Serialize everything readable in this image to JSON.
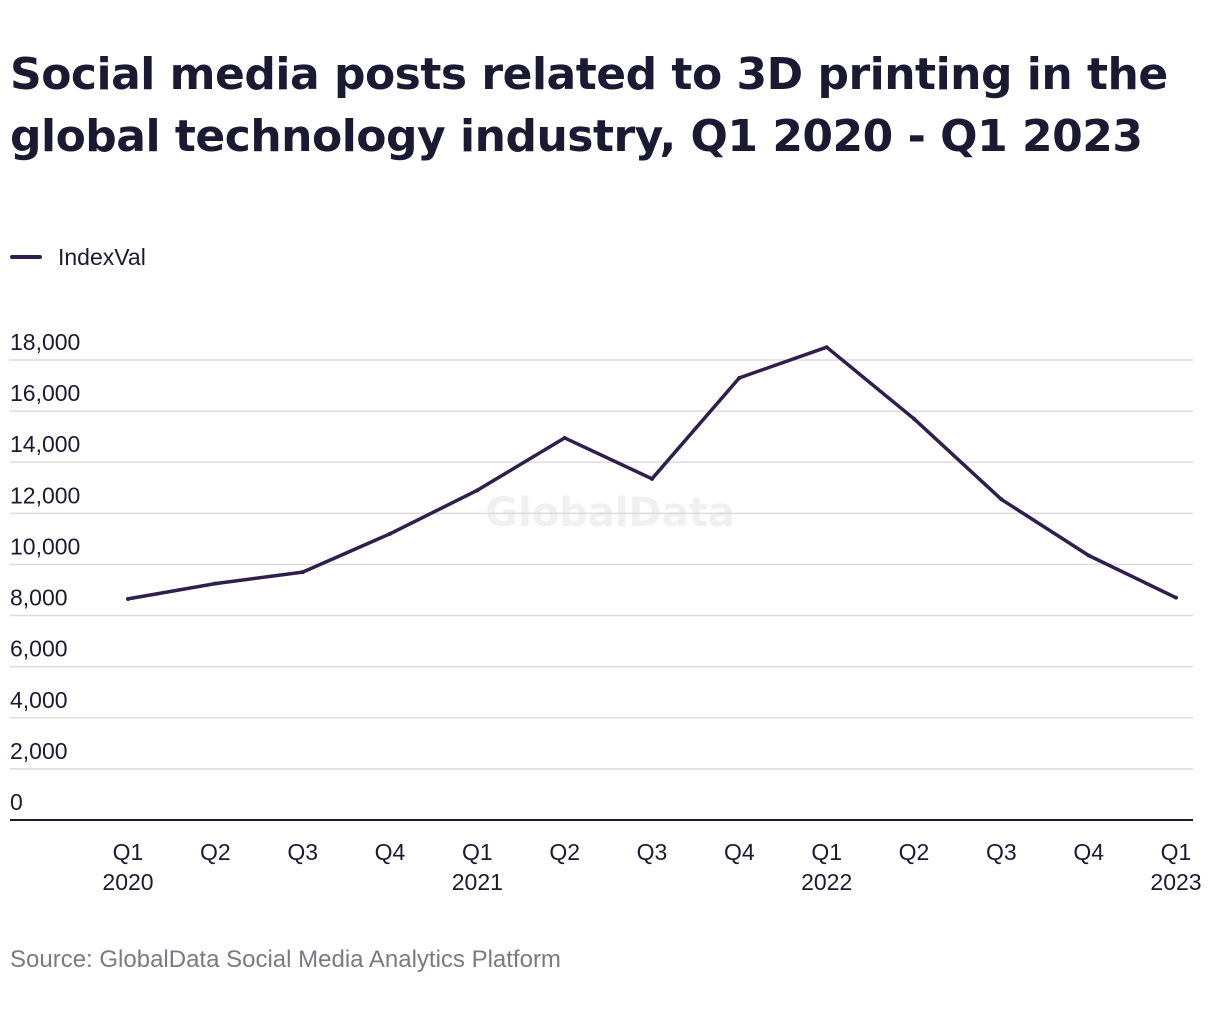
{
  "title": "Social media posts related to 3D printing in the global technology industry, Q1 2020 - Q1 2023",
  "source": "Source: GlobalData Social Media Analytics Platform",
  "watermark": "GlobalData",
  "colors": {
    "line": "#2e1f4f",
    "grid": "#dcdcdc",
    "axis": "#1c1a33"
  },
  "chart_data": {
    "type": "line",
    "title": "Social media posts related to 3D printing in the global technology industry, Q1 2020 - Q1 2023",
    "xlabel": "",
    "ylabel": "",
    "categories": [
      "Q1 2020",
      "Q2 2020",
      "Q3 2020",
      "Q4 2020",
      "Q1 2021",
      "Q2 2021",
      "Q3 2021",
      "Q4 2021",
      "Q1 2022",
      "Q2 2022",
      "Q3 2022",
      "Q4 2022",
      "Q1 2023"
    ],
    "tick_labels": [
      [
        "Q1",
        "2020"
      ],
      [
        "Q2"
      ],
      [
        "Q3"
      ],
      [
        "Q4"
      ],
      [
        "Q1",
        "2021"
      ],
      [
        "Q2"
      ],
      [
        "Q3"
      ],
      [
        "Q4"
      ],
      [
        "Q1",
        "2022"
      ],
      [
        "Q2"
      ],
      [
        "Q3"
      ],
      [
        "Q4"
      ],
      [
        "Q1",
        "2023"
      ]
    ],
    "series": [
      {
        "name": "IndexVal",
        "values": [
          8650,
          9250,
          9700,
          11200,
          12900,
          14950,
          13350,
          17300,
          18500,
          15700,
          12550,
          10350,
          8700
        ]
      }
    ],
    "ylim": [
      0,
      18000
    ],
    "yticks": [
      0,
      2000,
      4000,
      6000,
      8000,
      10000,
      12000,
      14000,
      16000,
      18000
    ],
    "ytick_labels": [
      "0",
      "2,000",
      "4,000",
      "6,000",
      "8,000",
      "10,000",
      "12,000",
      "14,000",
      "16,000",
      "18,000"
    ],
    "grid": true,
    "legend": "top-left"
  }
}
